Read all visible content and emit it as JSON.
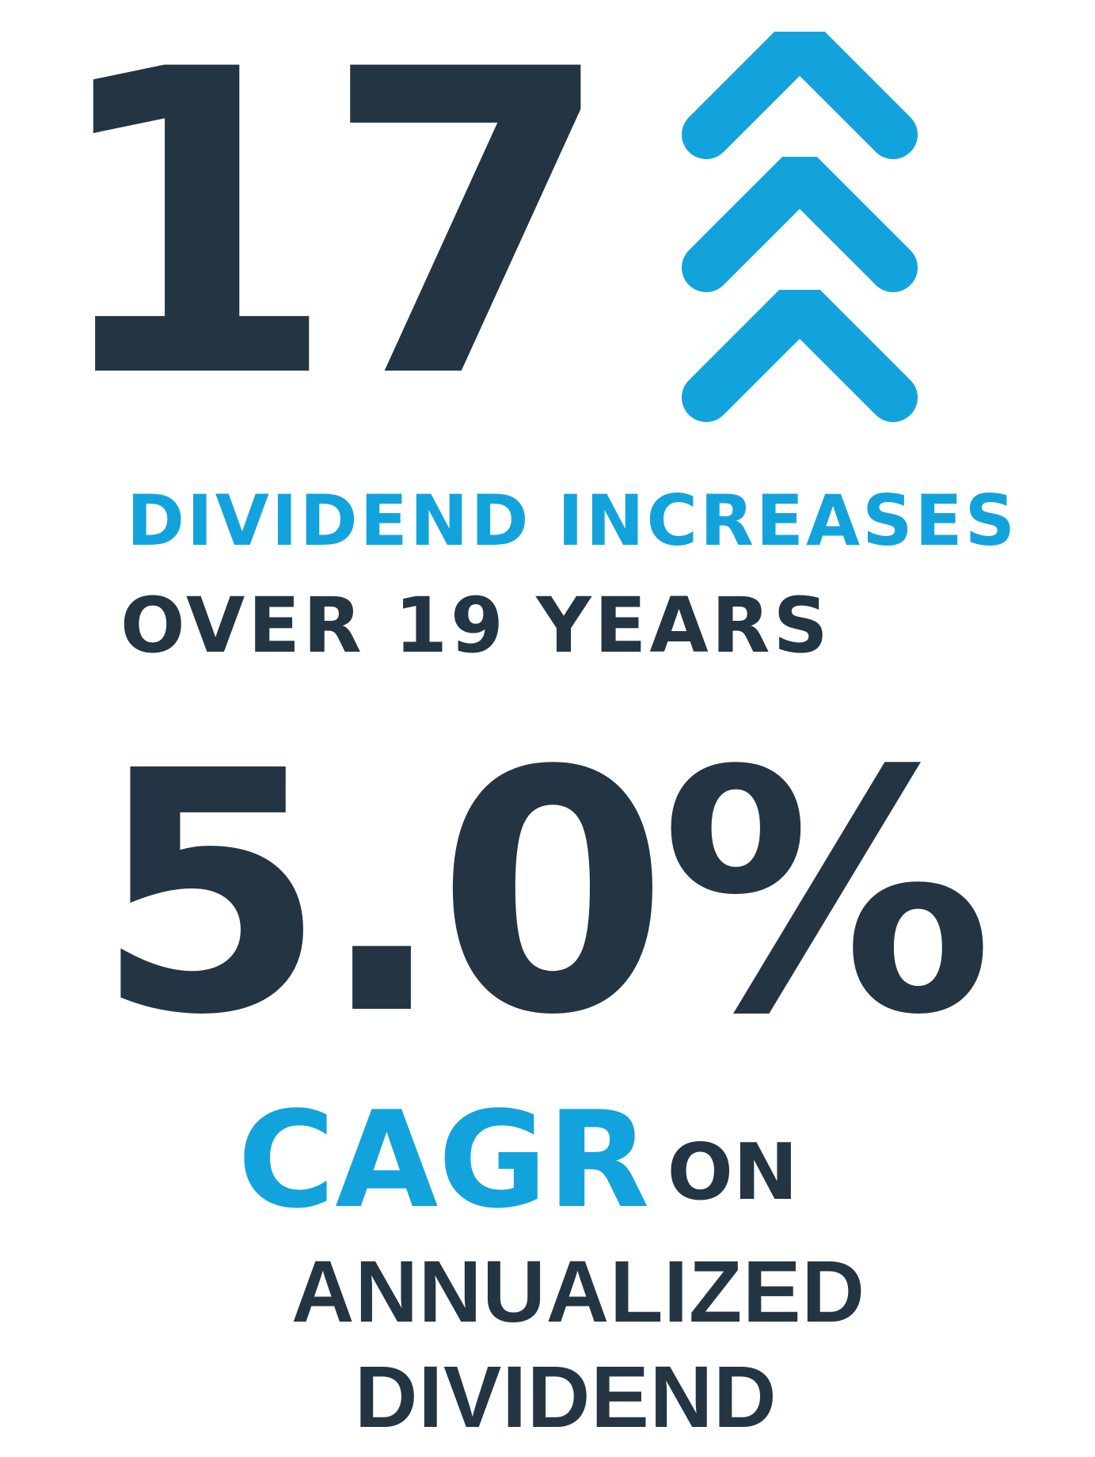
{
  "colors": {
    "dark": "#233543",
    "blue": "#13A3DC",
    "background": "#FFFFFF"
  },
  "stat1": {
    "number": "17",
    "icon": "triple-chevron-up-icon",
    "line1": "DIVIDEND INCREASES",
    "line2": "OVER 19 YEARS"
  },
  "stat2": {
    "number": "5.0%",
    "highlight": "CAGR",
    "connector": "ON",
    "line1": "ANNUALIZED",
    "line2": "DIVIDEND"
  }
}
